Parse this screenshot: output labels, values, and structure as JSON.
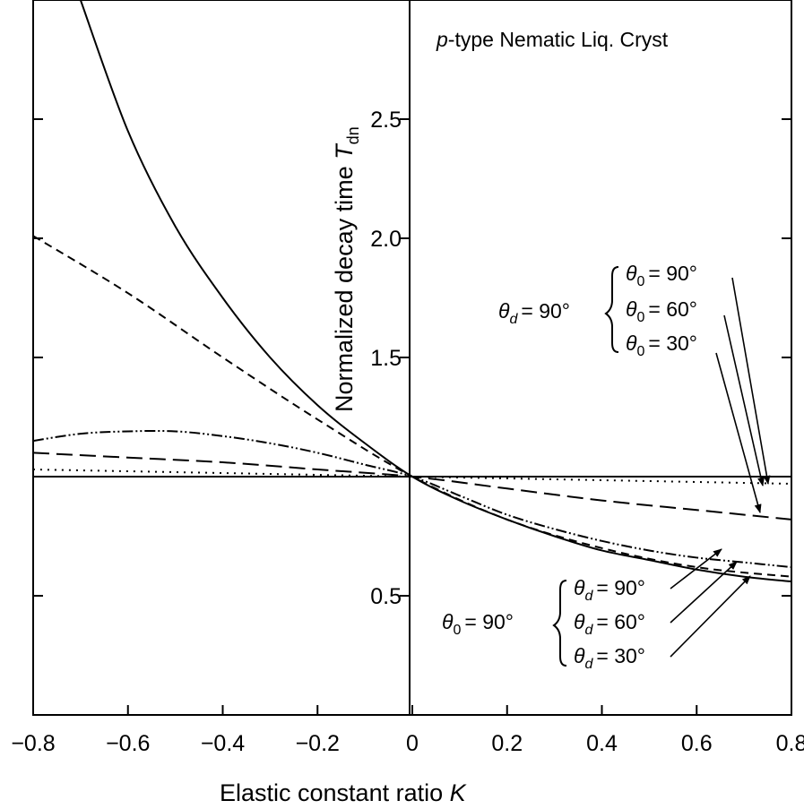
{
  "chart_data": {
    "type": "line",
    "title": "",
    "xlabel": "Elastic constant ratio K",
    "ylabel": "Normalized decay time T_dn",
    "xlim": [
      -0.8,
      0.8
    ],
    "ylim": [
      0.0,
      3.0
    ],
    "x_ticks": [
      -0.8,
      -0.6,
      -0.4,
      -0.2,
      0,
      0.2,
      0.4,
      0.6,
      0.8
    ],
    "x_tick_labels": [
      "−0.8",
      "−0.6",
      "−0.4",
      "−0.2",
      "0",
      "0.2",
      "0.4",
      "0.6",
      "0.8"
    ],
    "y_ticks": [
      0.5,
      1.0,
      1.5,
      2.0,
      2.5
    ],
    "y_tick_labels": [
      "0.5",
      "",
      "1.5",
      "2.0",
      "2.5"
    ],
    "grid": false,
    "series": [
      {
        "style": "solid",
        "x": [
          -0.7,
          -0.6,
          -0.5,
          -0.4,
          -0.3,
          -0.2,
          -0.1,
          0,
          0.1,
          0.2,
          0.3,
          0.4,
          0.5,
          0.6,
          0.7,
          0.8
        ],
        "values": [
          3.0,
          2.45,
          2.05,
          1.75,
          1.5,
          1.3,
          1.14,
          1.0,
          0.9,
          0.82,
          0.75,
          0.69,
          0.65,
          0.61,
          0.58,
          0.56
        ]
      },
      {
        "style": "short-dash",
        "x": [
          -0.8,
          -0.6,
          -0.4,
          -0.2,
          0,
          0.2,
          0.4,
          0.6,
          0.8
        ],
        "values": [
          2.01,
          1.77,
          1.5,
          1.24,
          1.0,
          0.82,
          0.7,
          0.62,
          0.58
        ]
      },
      {
        "style": "dash-dot-dot",
        "x": [
          -0.8,
          -0.7,
          -0.6,
          -0.5,
          -0.4,
          -0.3,
          -0.2,
          -0.1,
          0,
          0.1,
          0.2,
          0.3,
          0.4,
          0.5,
          0.6,
          0.7,
          0.8
        ],
        "values": [
          1.15,
          1.18,
          1.19,
          1.19,
          1.17,
          1.14,
          1.1,
          1.05,
          1.0,
          0.92,
          0.84,
          0.78,
          0.73,
          0.69,
          0.66,
          0.64,
          0.62
        ]
      },
      {
        "style": "long-dash",
        "x": [
          -0.8,
          -0.6,
          -0.4,
          -0.2,
          0,
          0.2,
          0.4,
          0.6,
          0.8
        ],
        "values": [
          1.1,
          1.08,
          1.06,
          1.03,
          1.0,
          0.95,
          0.9,
          0.86,
          0.82
        ]
      },
      {
        "style": "dotted",
        "x": [
          -0.8,
          -0.4,
          0,
          0.4,
          0.8
        ],
        "values": [
          1.03,
          1.015,
          1.0,
          0.985,
          0.97
        ]
      },
      {
        "style": "solid-flat",
        "x": [
          -0.8,
          0.8
        ],
        "values": [
          1.0,
          1.0
        ]
      }
    ],
    "annotations": {
      "material": {
        "prefix": "p",
        "text": "-type Nematic Liq. Cryst"
      },
      "group_top": {
        "lead_sym": "θ",
        "lead_sub": "d",
        "lead_val": "= 90°",
        "items": [
          {
            "sym": "θ",
            "sub": "0",
            "val": "= 90°"
          },
          {
            "sym": "θ",
            "sub": "0",
            "val": "= 60°"
          },
          {
            "sym": "θ",
            "sub": "0",
            "val": "= 30°"
          }
        ]
      },
      "group_bottom": {
        "lead_sym": "θ",
        "lead_sub": "0",
        "lead_val": "= 90°",
        "items": [
          {
            "sym": "θ",
            "sub": "d",
            "val": "= 90°"
          },
          {
            "sym": "θ",
            "sub": "d",
            "val": "= 60°"
          },
          {
            "sym": "θ",
            "sub": "d",
            "val": "= 30°"
          }
        ]
      }
    },
    "axis_label_parts": {
      "x_main": "Elastic constant ratio ",
      "x_var": "K",
      "y_main": "Normalized decay time ",
      "y_var": "T",
      "y_sub": "dn"
    }
  }
}
